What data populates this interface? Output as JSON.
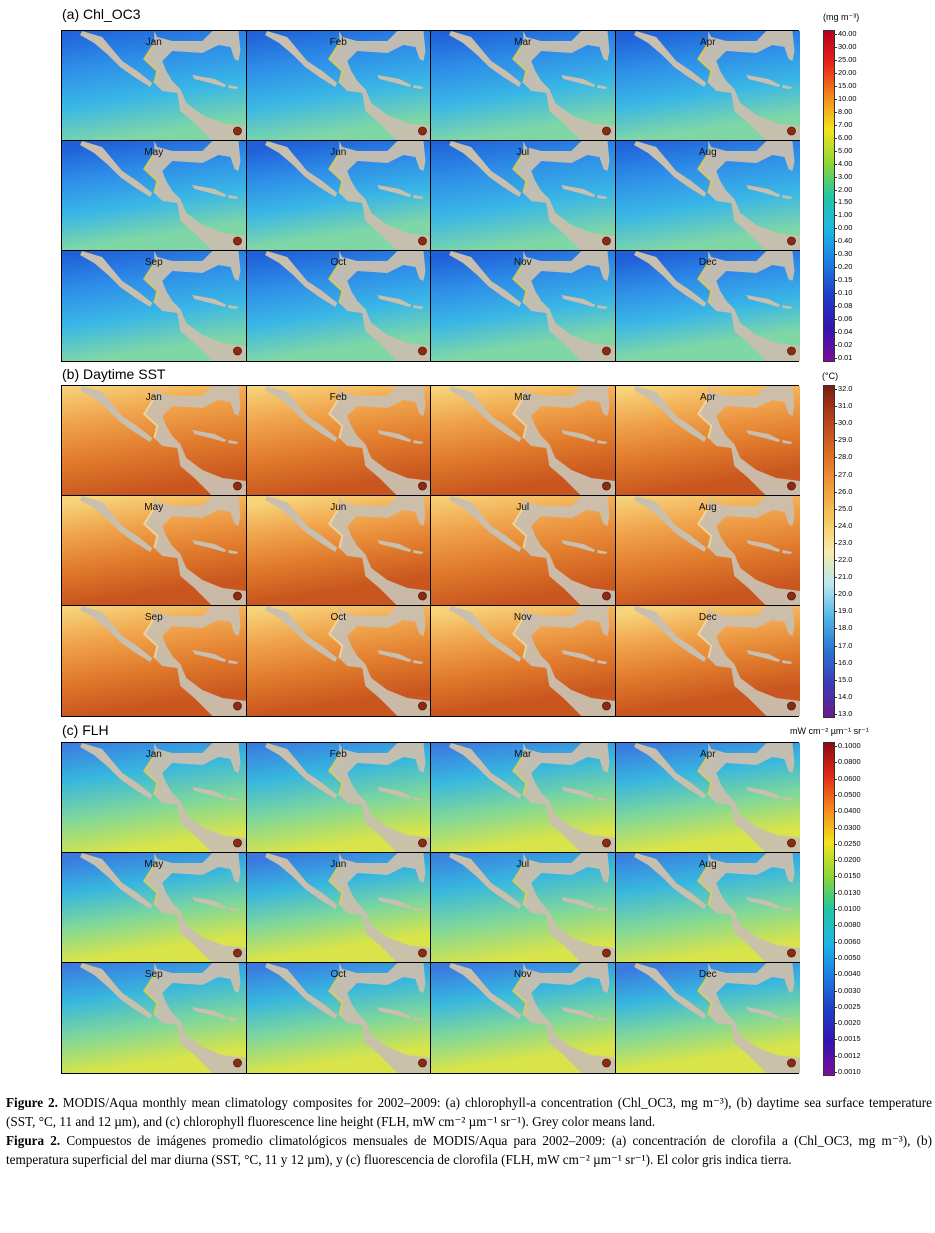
{
  "panels": [
    {
      "key": "chl",
      "label": "(a)  Chl_OC3",
      "unit": "(mg m⁻³)",
      "ticks": [
        "40.00",
        "30.00",
        "25.00",
        "20.00",
        "15.00",
        "10.00",
        "8.00",
        "7.00",
        "6.00",
        "5.00",
        "4.00",
        "3.00",
        "2.00",
        "1.50",
        "1.00",
        "0.00",
        "0.40",
        "0.30",
        "0.20",
        "0.15",
        "0.10",
        "0.08",
        "0.06",
        "0.04",
        "0.02",
        "0.01"
      ],
      "colors": [
        "#b4001e",
        "#e8241a",
        "#f58a1c",
        "#f2e31d",
        "#8fd636",
        "#22c6a0",
        "#1db7e6",
        "#1d7fe3",
        "#1e3fc9",
        "#3314b0",
        "#7a0f9a"
      ]
    },
    {
      "key": "sst",
      "label": "(b)  Daytime SST",
      "unit": "(°C)",
      "ticks": [
        "32.0",
        "31.0",
        "30.0",
        "29.0",
        "28.0",
        "27.0",
        "26.0",
        "25.0",
        "24.0",
        "23.0",
        "22.0",
        "21.0",
        "20.0",
        "19.0",
        "18.0",
        "17.0",
        "16.0",
        "15.0",
        "14.0",
        "13.0"
      ],
      "colors": [
        "#7a1e0e",
        "#b5421b",
        "#dc6a23",
        "#f09a3a",
        "#f6c65c",
        "#f7ebaa",
        "#b8e8f0",
        "#4fb6e8",
        "#2a74d2",
        "#3b3db6",
        "#6a1b8e"
      ]
    },
    {
      "key": "flh",
      "label": "(c)  FLH",
      "unit": "mW cm⁻² µm⁻¹ sr⁻¹",
      "ticks": [
        "0.1000",
        "0.0800",
        "0.0600",
        "0.0500",
        "0.0400",
        "0.0300",
        "0.0250",
        "0.0200",
        "0.0150",
        "0.0130",
        "0.0100",
        "0.0080",
        "0.0060",
        "0.0050",
        "0.0040",
        "0.0030",
        "0.0025",
        "0.0020",
        "0.0015",
        "0.0012",
        "0.0010"
      ],
      "colors": [
        "#8a0a12",
        "#e22a18",
        "#f5891c",
        "#f2e31d",
        "#8fd636",
        "#22c6a0",
        "#1db7e6",
        "#1d7fe3",
        "#1e3fc9",
        "#3314b0",
        "#7a0f9a"
      ]
    }
  ],
  "months": [
    "Jan",
    "Feb",
    "Mar",
    "Apr",
    "May",
    "Jun",
    "Jul",
    "Aug",
    "Sep",
    "Oct",
    "Nov",
    "Dec"
  ],
  "caption": {
    "en_bold": "Figure 2.",
    "en_text": " MODIS/Aqua monthly mean climatology composites for 2002–2009: (a) chlorophyll-a concentration (Chl_OC3, mg m⁻³), (b) daytime sea surface temperature (SST, °C, 11 and 12 µm), and (c) chlorophyll fluorescence line height (FLH, mW cm⁻² µm⁻¹ sr⁻¹). Grey color means land.",
    "es_bold": "Figura 2.",
    "es_text": " Compuestos de imágenes promedio climatológicos mensuales de MODIS/Aqua para 2002–2009: (a) concentración de clorofila a (Chl_OC3, mg m⁻³), (b) temperatura superficial del mar diurna (SST, °C, 11 y 12 µm), y (c) fluorescencia de clorofila (FLH, mW cm⁻² µm⁻¹ sr⁻¹). El color gris indica tierra."
  },
  "style": {
    "land": "#c9bfae",
    "chl_ocean": [
      "#1f5fd8",
      "#2e8ee8",
      "#3ab7e6",
      "#7fd7a6"
    ],
    "sst_ocean": [
      "#f6d47a",
      "#f0a24a",
      "#e07a2c",
      "#c9561e"
    ],
    "flh_ocean": [
      "#3a7ae0",
      "#37b6df",
      "#7fd79a",
      "#d8e44a"
    ]
  }
}
